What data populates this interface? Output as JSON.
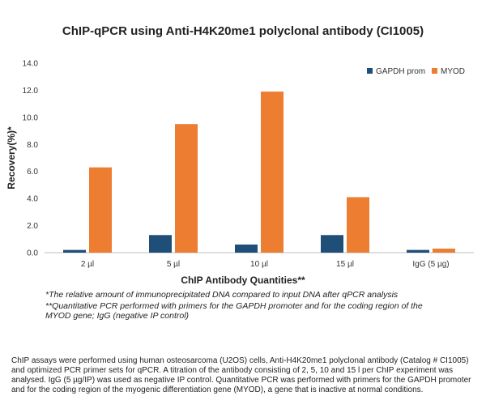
{
  "chart_data": {
    "type": "bar",
    "title": "ChIP-qPCR using Anti-H4K20me1 polyclonal antibody (CI1005)",
    "xlabel": "ChIP Antibody Quantities**",
    "ylabel": "Recovery(%)*",
    "categories": [
      "2 µl",
      "5 µl",
      "10 µl",
      "15 µl",
      "IgG (5 µg)"
    ],
    "series": [
      {
        "name": "GAPDH prom",
        "color": "#1f4e79",
        "values": [
          0.2,
          1.3,
          0.6,
          1.3,
          0.2
        ]
      },
      {
        "name": "MYOD",
        "color": "#ed7d31",
        "values": [
          6.3,
          9.5,
          11.9,
          4.1,
          0.3
        ]
      }
    ],
    "ylim": [
      0,
      14
    ],
    "yticks": [
      "0.0",
      "2.0",
      "4.0",
      "6.0",
      "8.0",
      "10.0",
      "12.0",
      "14.0"
    ],
    "grid": false,
    "legend_position": "top-right"
  },
  "footnotes": [
    "*The relative amount of immunoprecipitated DNA compared to input DNA after qPCR analysis",
    "**Quantitative PCR performed with primers for the GAPDH promoter and for the coding region of the MYOD gene; IgG (negative IP control)"
  ],
  "caption": "ChIP assays were performed using human osteosarcoma (U2OS) cells, Anti-H4K20me1 polyclonal antibody (Catalog # CI1005) and optimized PCR primer sets for qPCR. A titration of the antibody consisting of 2, 5, 10 and 15 l per ChIP experiment was analysed. IgG (5 µg/IP) was used as negative IP control. Quantitative PCR was performed with primers for the GAPDH promoter and for the coding region of the myogenic differentiation gene (MYOD), a gene that is inactive at normal conditions."
}
